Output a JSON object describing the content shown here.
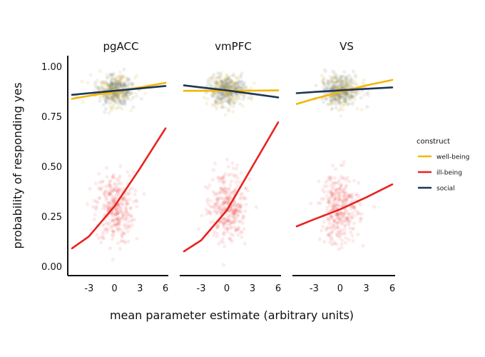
{
  "chart_data": {
    "type": "scatter",
    "xlabel": "mean parameter estimate (arbitrary units)",
    "ylabel": "probability of responding yes",
    "xlim": [
      -5,
      6
    ],
    "ylim": [
      0,
      1
    ],
    "x_ticks": [
      -3,
      0,
      3,
      6
    ],
    "y_ticks": [
      0.0,
      0.25,
      0.5,
      0.75,
      1.0
    ],
    "y_tick_labels": [
      "0.00",
      "0.25",
      "0.50",
      "0.75",
      "1.00"
    ],
    "legend": {
      "title": "construct",
      "position": "right",
      "entries": [
        {
          "name": "well-being",
          "color": "#F2B705"
        },
        {
          "name": "ill-being",
          "color": "#E8231F"
        },
        {
          "name": "social",
          "color": "#1D3557"
        }
      ]
    },
    "panels": [
      {
        "title": "pgACC",
        "series": [
          {
            "name": "well-being",
            "color": "#F2B705",
            "x": [
              -5,
              -3,
              0,
              3,
              6
            ],
            "y": [
              0.838,
              0.853,
              0.873,
              0.895,
              0.918
            ]
          },
          {
            "name": "social",
            "color": "#1D3557",
            "x": [
              -5,
              -3,
              0,
              3,
              6
            ],
            "y": [
              0.858,
              0.866,
              0.878,
              0.89,
              0.902
            ]
          },
          {
            "name": "ill-being",
            "color": "#E8231F",
            "x": [
              -5,
              -3,
              0,
              3,
              6
            ],
            "y": [
              0.09,
              0.15,
              0.3,
              0.49,
              0.69
            ]
          }
        ]
      },
      {
        "title": "vmPFC",
        "series": [
          {
            "name": "well-being",
            "color": "#F2B705",
            "x": [
              -5,
              -3,
              0,
              3,
              6
            ],
            "y": [
              0.878,
              0.878,
              0.878,
              0.879,
              0.88
            ]
          },
          {
            "name": "social",
            "color": "#1D3557",
            "x": [
              -5,
              -3,
              0,
              3,
              6
            ],
            "y": [
              0.905,
              0.895,
              0.88,
              0.863,
              0.845
            ]
          },
          {
            "name": "ill-being",
            "color": "#E8231F",
            "x": [
              -5,
              -3,
              0,
              3,
              6
            ],
            "y": [
              0.075,
              0.13,
              0.28,
              0.5,
              0.72
            ]
          }
        ]
      },
      {
        "title": "VS",
        "series": [
          {
            "name": "well-being",
            "color": "#F2B705",
            "x": [
              -5,
              -3,
              0,
              3,
              6
            ],
            "y": [
              0.812,
              0.838,
              0.872,
              0.905,
              0.932
            ]
          },
          {
            "name": "social",
            "color": "#1D3557",
            "x": [
              -5,
              -3,
              0,
              3,
              6
            ],
            "y": [
              0.866,
              0.872,
              0.88,
              0.888,
              0.895
            ]
          },
          {
            "name": "ill-being",
            "color": "#E8231F",
            "x": [
              -5,
              -3,
              0,
              3,
              6
            ],
            "y": [
              0.2,
              0.235,
              0.285,
              0.345,
              0.41
            ]
          }
        ]
      }
    ],
    "scatter_clouds": [
      {
        "group": "upper",
        "color": "#BFA24A",
        "center": [
          0,
          0.88
        ],
        "sd": [
          1.1,
          0.038
        ]
      },
      {
        "group": "ill-being",
        "color": "#E8231F",
        "center": [
          0,
          0.29
        ],
        "sd": [
          1.1,
          0.09
        ]
      }
    ]
  }
}
